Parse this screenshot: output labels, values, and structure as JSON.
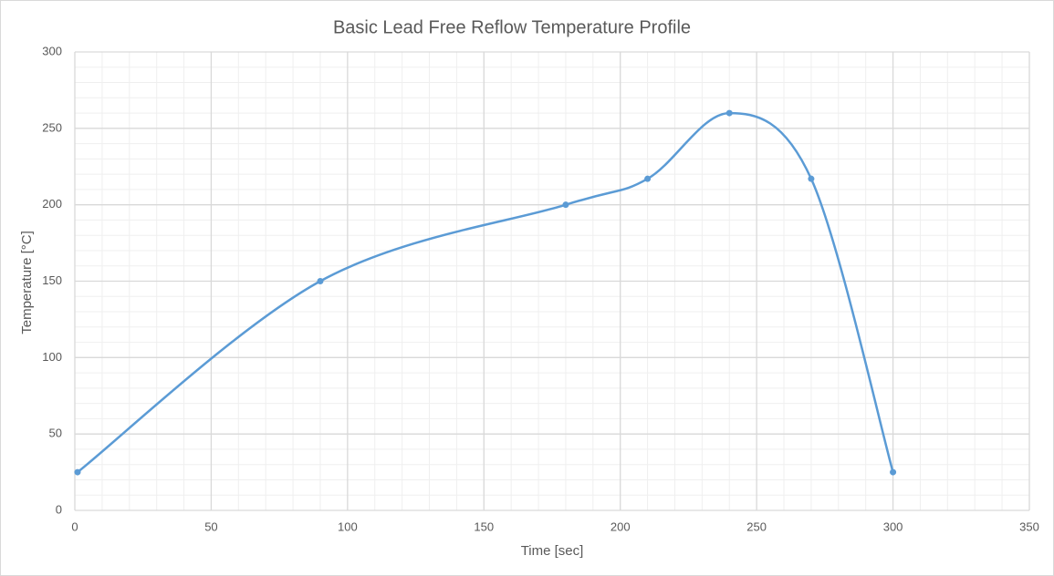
{
  "chart_data": {
    "type": "scatter",
    "title": "Basic Lead Free Reflow Temperature Profile",
    "x_label": "Time [sec]",
    "y_label": "Temperature [°C]",
    "series": [
      {
        "name": "Temperature",
        "color": "#5b9bd5",
        "x": [
          1,
          90,
          180,
          210,
          240,
          270,
          300
        ],
        "values": [
          25,
          150,
          200,
          217,
          260,
          217,
          25
        ]
      }
    ],
    "xlim": [
      0,
      350
    ],
    "xticks": [
      0,
      50,
      100,
      150,
      200,
      250,
      300,
      350
    ],
    "ylim": [
      0,
      300
    ],
    "yticks": [
      0,
      50,
      100,
      150,
      200,
      250,
      300
    ],
    "grid": true,
    "minor_grid": true,
    "smooth": true,
    "markers": true
  }
}
